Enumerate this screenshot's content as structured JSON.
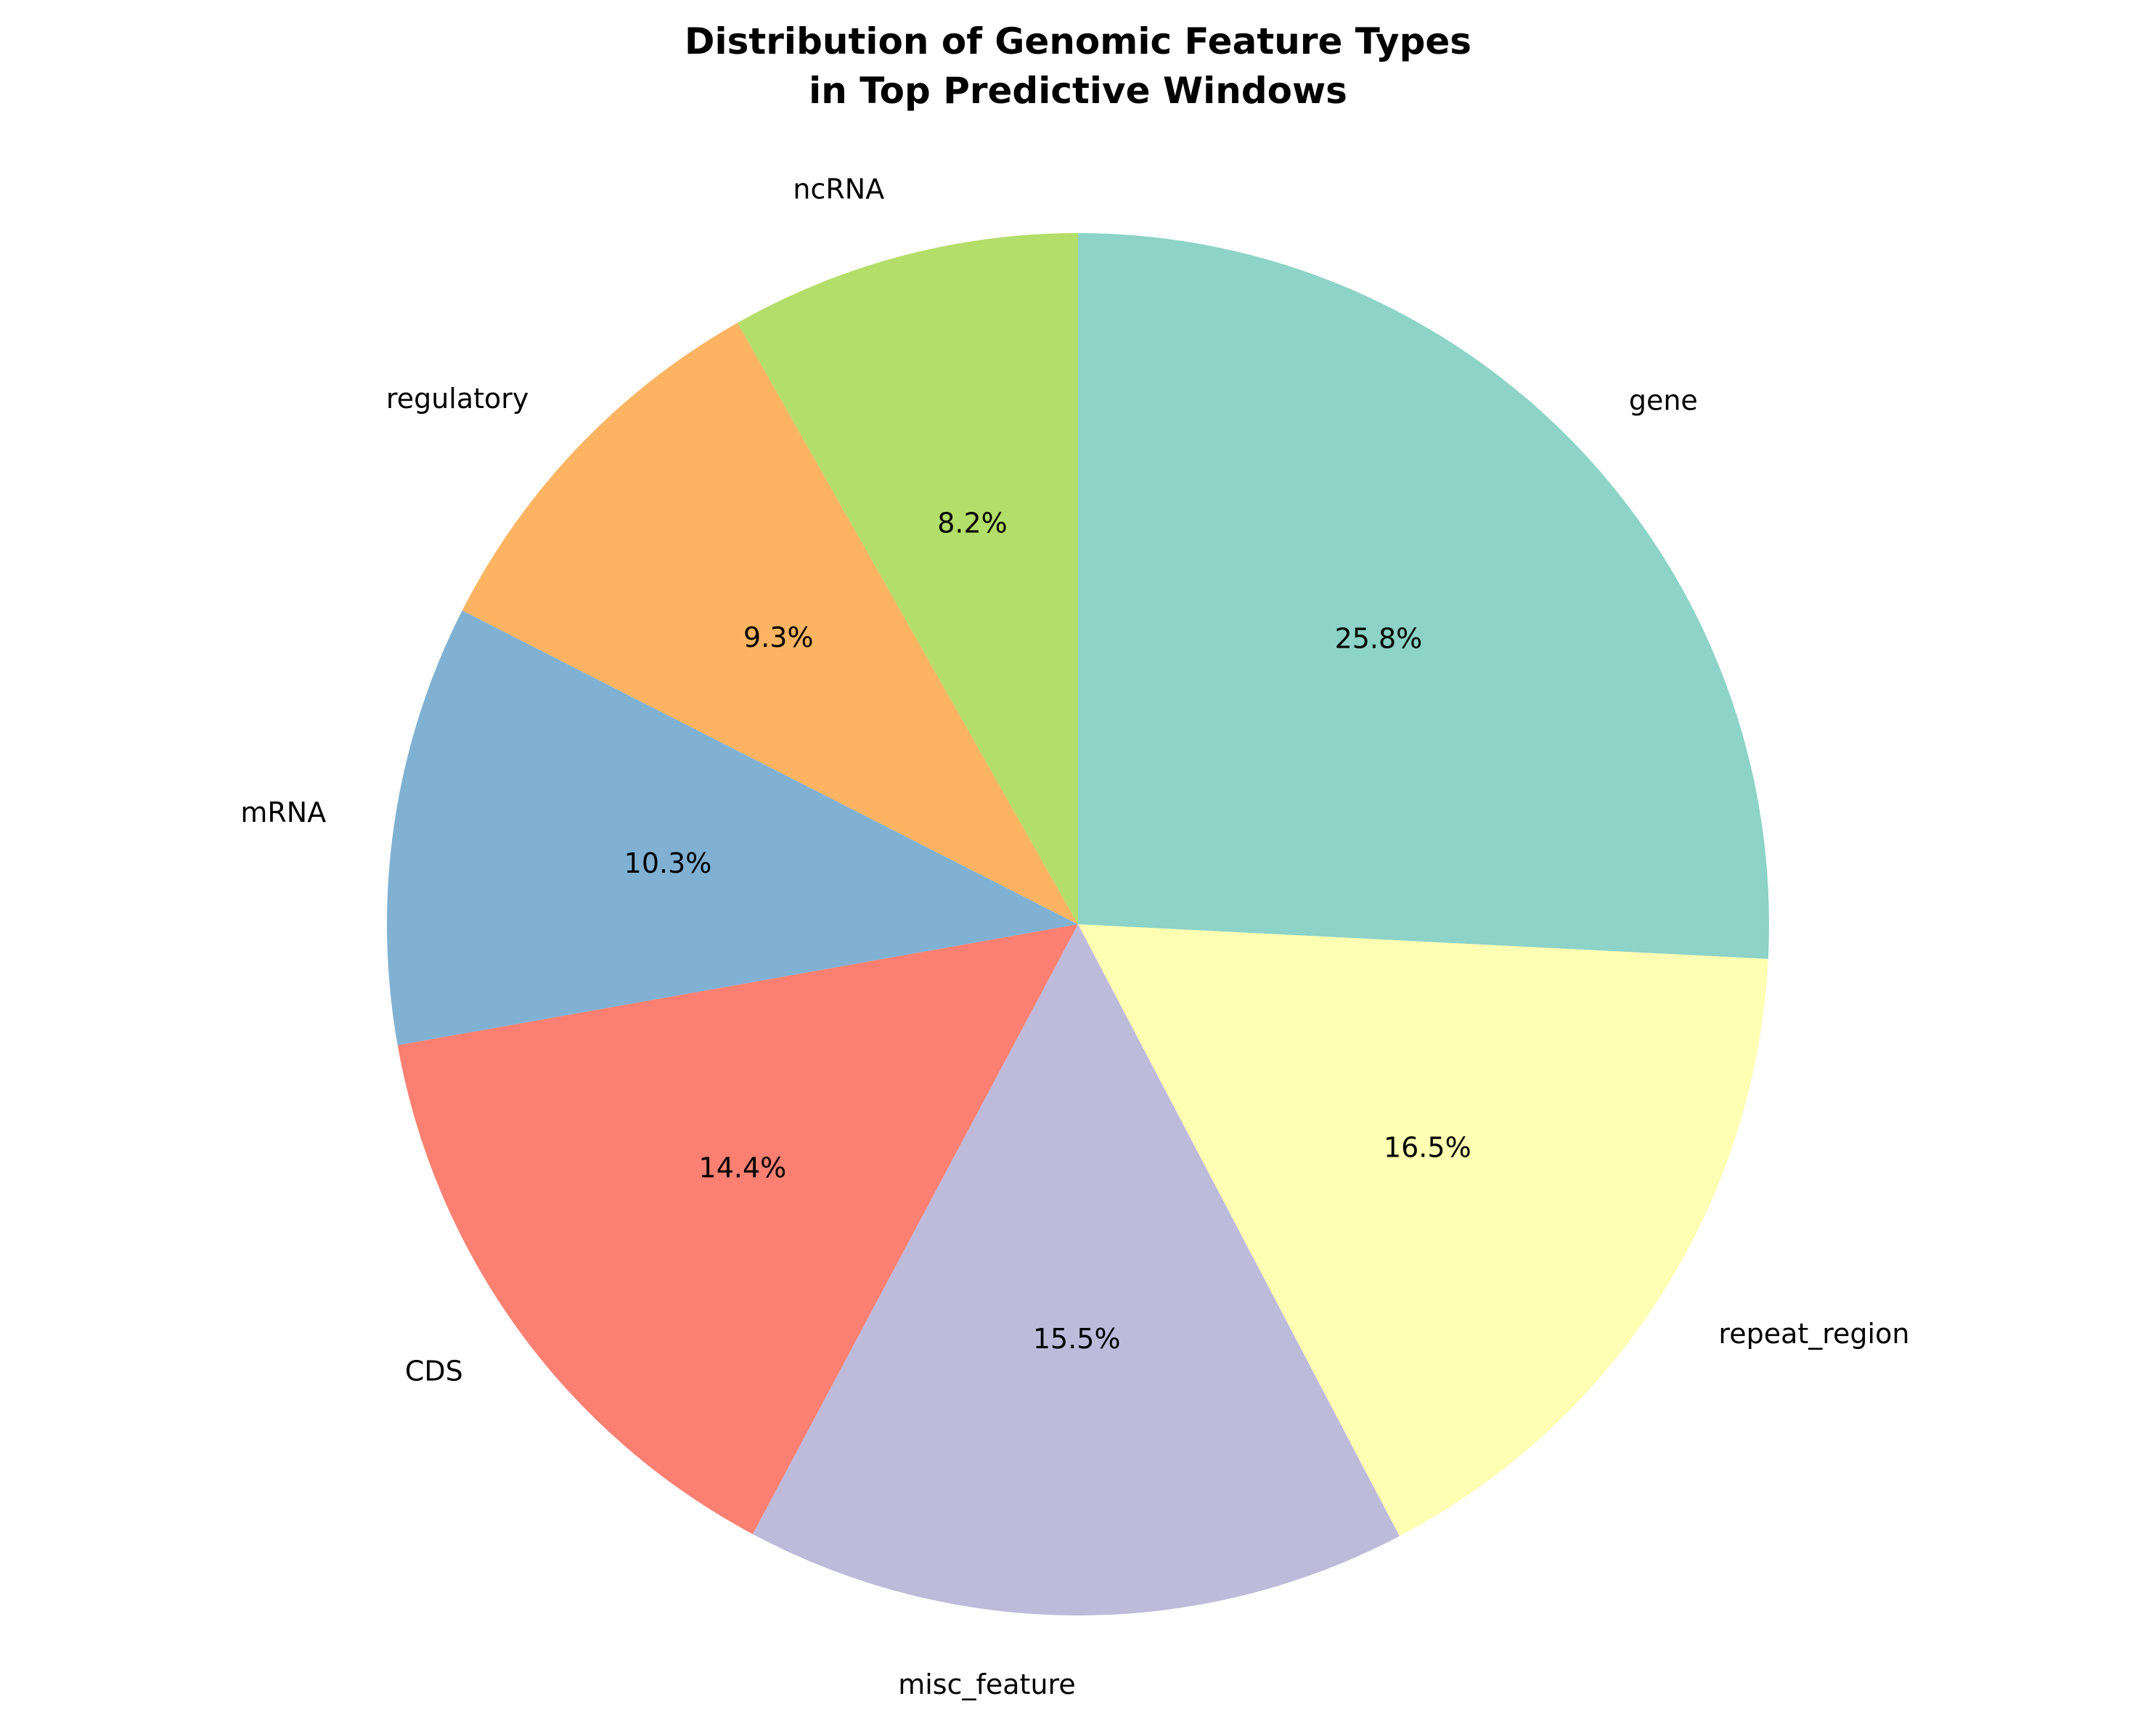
{
  "chart_data": {
    "type": "pie",
    "title_lines": [
      "Distribution of Genomic Feature Types",
      "in Top Predictive Windows"
    ],
    "start_angle_deg": 90,
    "direction": "clockwise",
    "slices": [
      {
        "label": "gene",
        "value": 25.8,
        "pct_label": "25.8%",
        "color": "#8dd3c7"
      },
      {
        "label": "repeat_region",
        "value": 16.5,
        "pct_label": "16.5%",
        "color": "#ffffb3"
      },
      {
        "label": "misc_feature",
        "value": 15.5,
        "pct_label": "15.5%",
        "color": "#bebada"
      },
      {
        "label": "CDS",
        "value": 14.4,
        "pct_label": "14.4%",
        "color": "#fb8072"
      },
      {
        "label": "mRNA",
        "value": 10.3,
        "pct_label": "10.3%",
        "color": "#80b1d3"
      },
      {
        "label": "regulatory",
        "value": 9.3,
        "pct_label": "9.3%",
        "color": "#fdb462"
      },
      {
        "label": "ncRNA",
        "value": 8.2,
        "pct_label": "8.2%",
        "color": "#b3de69"
      }
    ]
  }
}
